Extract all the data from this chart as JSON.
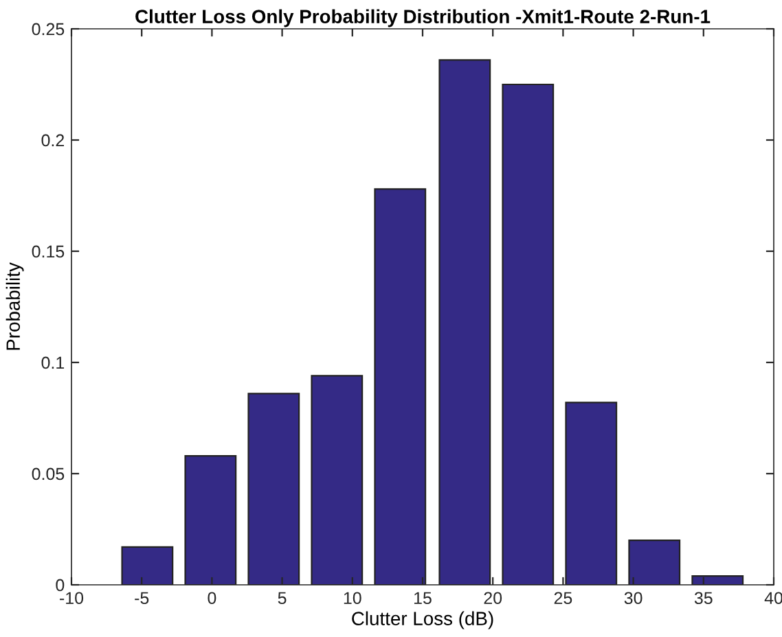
{
  "chart_data": {
    "type": "bar",
    "title": "Clutter Loss Only Probability Distribution -Xmit1-Route 2-Run-1",
    "xlabel": "Clutter Loss (dB)",
    "ylabel": "Probability",
    "x": [
      -4.6,
      -0.1,
      4.4,
      8.9,
      13.4,
      18.0,
      22.5,
      27.0,
      31.5,
      36.0
    ],
    "values": [
      0.017,
      0.058,
      0.086,
      0.094,
      0.178,
      0.236,
      0.225,
      0.082,
      0.02,
      0.004
    ],
    "color": "#342a86",
    "xlim": [
      -10,
      40
    ],
    "xticks": [
      -10,
      -5,
      0,
      5,
      10,
      15,
      20,
      25,
      30,
      35,
      40
    ],
    "ylim": [
      0,
      0.25
    ],
    "yticks": [
      0,
      0.05,
      0.1,
      0.15,
      0.2,
      0.25
    ],
    "grid": false
  }
}
